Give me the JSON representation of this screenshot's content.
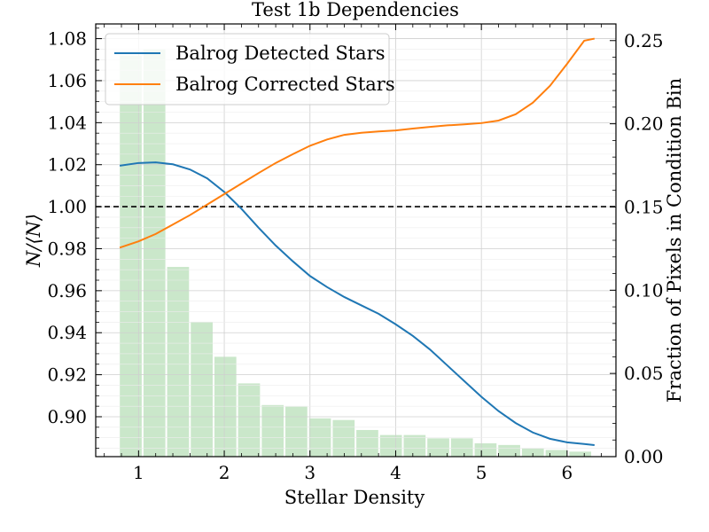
{
  "chart_data": {
    "type": "line",
    "title": "Test 1b Dependencies",
    "xlabel": "Stellar Density",
    "ylabel": "N/⟨N⟩",
    "ylabel_right": "Fraction of Pixels in Condition Bin",
    "xlim": [
      0.5,
      6.57
    ],
    "ylim": [
      0.881,
      1.087
    ],
    "y2lim": [
      0.0,
      0.26
    ],
    "x_ticks": [
      "1",
      "2",
      "3",
      "4",
      "5",
      "6"
    ],
    "y_ticks": [
      "0.90",
      "0.92",
      "0.94",
      "0.96",
      "0.98",
      "1.00",
      "1.02",
      "1.04",
      "1.06",
      "1.08"
    ],
    "y2_ticks": [
      "0.00",
      "0.05",
      "0.10",
      "0.15",
      "0.20",
      "0.25"
    ],
    "grid": true,
    "legend_position": "upper-left",
    "reference_line": {
      "y": 1.0,
      "style": "dashed",
      "color": "#000000"
    },
    "series": [
      {
        "name": "Balrog Detected Stars",
        "color": "#1f77b4",
        "x": [
          0.78,
          1.0,
          1.2,
          1.4,
          1.6,
          1.8,
          2.0,
          2.2,
          2.4,
          2.6,
          2.8,
          3.0,
          3.2,
          3.4,
          3.6,
          3.8,
          4.0,
          4.2,
          4.4,
          4.6,
          4.8,
          5.0,
          5.2,
          5.4,
          5.6,
          5.8,
          6.0,
          6.2,
          6.32
        ],
        "y": [
          1.0195,
          1.0208,
          1.0211,
          1.0202,
          1.0177,
          1.0135,
          1.007,
          0.999,
          0.99,
          0.9815,
          0.974,
          0.967,
          0.9617,
          0.957,
          0.953,
          0.949,
          0.944,
          0.9385,
          0.932,
          0.9245,
          0.917,
          0.9095,
          0.9027,
          0.897,
          0.8925,
          0.8895,
          0.8878,
          0.887,
          0.8865
        ]
      },
      {
        "name": "Balrog Corrected Stars",
        "color": "#ff7f0e",
        "x": [
          0.78,
          1.0,
          1.2,
          1.4,
          1.6,
          1.8,
          2.0,
          2.2,
          2.4,
          2.6,
          2.8,
          3.0,
          3.2,
          3.4,
          3.6,
          3.8,
          4.0,
          4.2,
          4.4,
          4.6,
          4.8,
          5.0,
          5.2,
          5.4,
          5.6,
          5.8,
          6.0,
          6.2,
          6.32
        ],
        "y": [
          0.9805,
          0.9835,
          0.987,
          0.9915,
          0.996,
          1.001,
          1.006,
          1.011,
          1.016,
          1.0208,
          1.025,
          1.029,
          1.032,
          1.0342,
          1.0352,
          1.0358,
          1.0363,
          1.0372,
          1.038,
          1.0387,
          1.0392,
          1.0398,
          1.041,
          1.044,
          1.0495,
          1.0575,
          1.068,
          1.079,
          1.08
        ]
      }
    ],
    "bars": {
      "name": "Fraction of Pixels",
      "color": "#a9d8a9",
      "axis": "right",
      "bin_width": 0.276,
      "x": [
        0.909,
        1.185,
        1.461,
        1.737,
        2.013,
        2.289,
        2.565,
        2.841,
        3.117,
        3.393,
        3.669,
        3.945,
        4.221,
        4.497,
        4.773,
        5.049,
        5.325,
        5.601,
        5.877,
        6.153
      ],
      "values": [
        0.241,
        0.245,
        0.114,
        0.081,
        0.06,
        0.044,
        0.031,
        0.03,
        0.023,
        0.022,
        0.016,
        0.013,
        0.013,
        0.011,
        0.011,
        0.008,
        0.007,
        0.005,
        0.004,
        0.003
      ]
    }
  }
}
